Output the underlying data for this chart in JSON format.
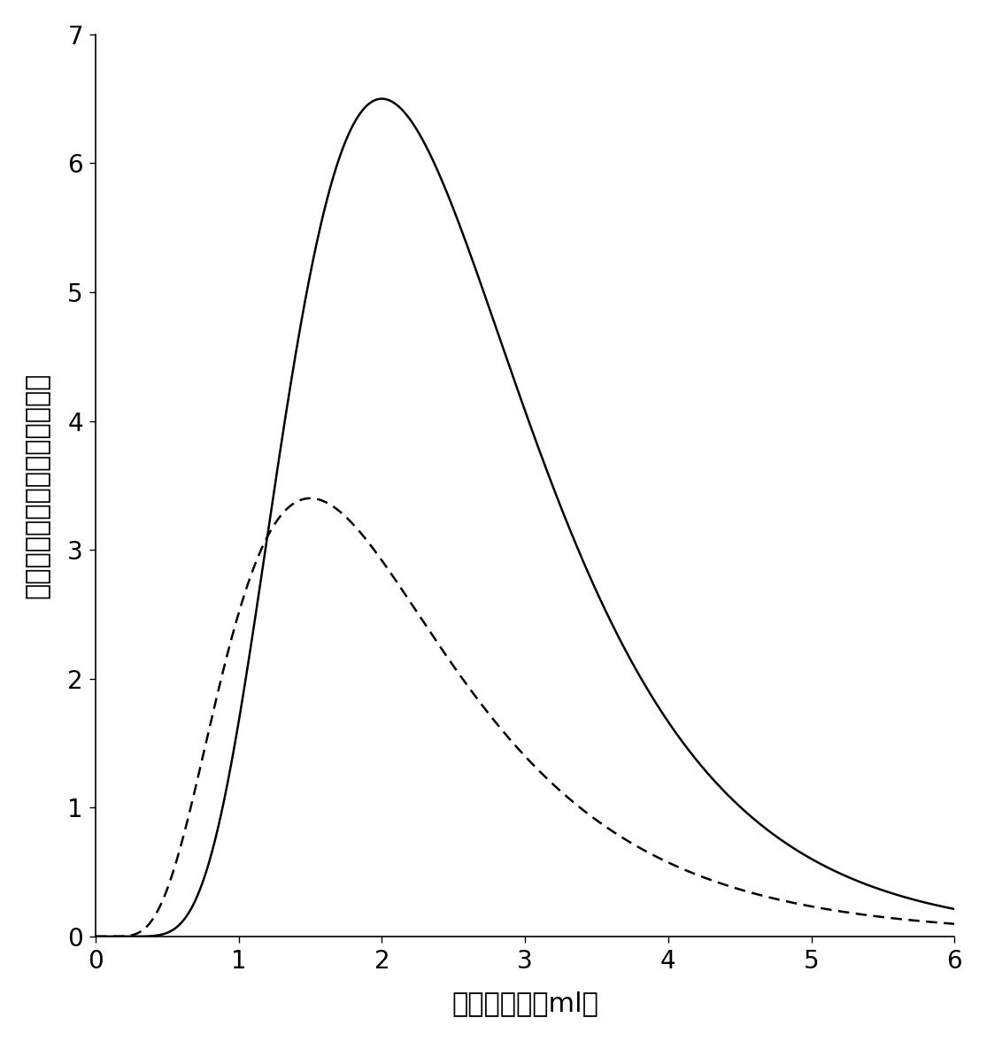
{
  "title": "",
  "xlabel": "洗脱剂体积（ml）",
  "ylabel": "洗脱剂中所含洗脱物的相对浓度",
  "xlim": [
    0,
    6
  ],
  "ylim": [
    0,
    7
  ],
  "xticks": [
    0,
    1,
    2,
    3,
    4,
    5,
    6
  ],
  "yticks": [
    0,
    1,
    2,
    3,
    4,
    5,
    6,
    7
  ],
  "solid_color": "#000000",
  "dashed_color": "#000000",
  "background_color": "#ffffff",
  "solid_peak_x": 2.0,
  "solid_peak_y": 6.5,
  "solid_mu": 0.55,
  "solid_sigma": 0.45,
  "solid_scale": 6.5,
  "dashed_peak_x": 1.5,
  "dashed_peak_y": 3.4,
  "dashed_mu": 0.3,
  "dashed_sigma": 0.5,
  "dashed_scale": 3.4,
  "xlabel_fontsize": 22,
  "ylabel_fontsize": 22,
  "tick_fontsize": 20,
  "figsize": [
    11.15,
    11.76
  ],
  "dpi": 100
}
